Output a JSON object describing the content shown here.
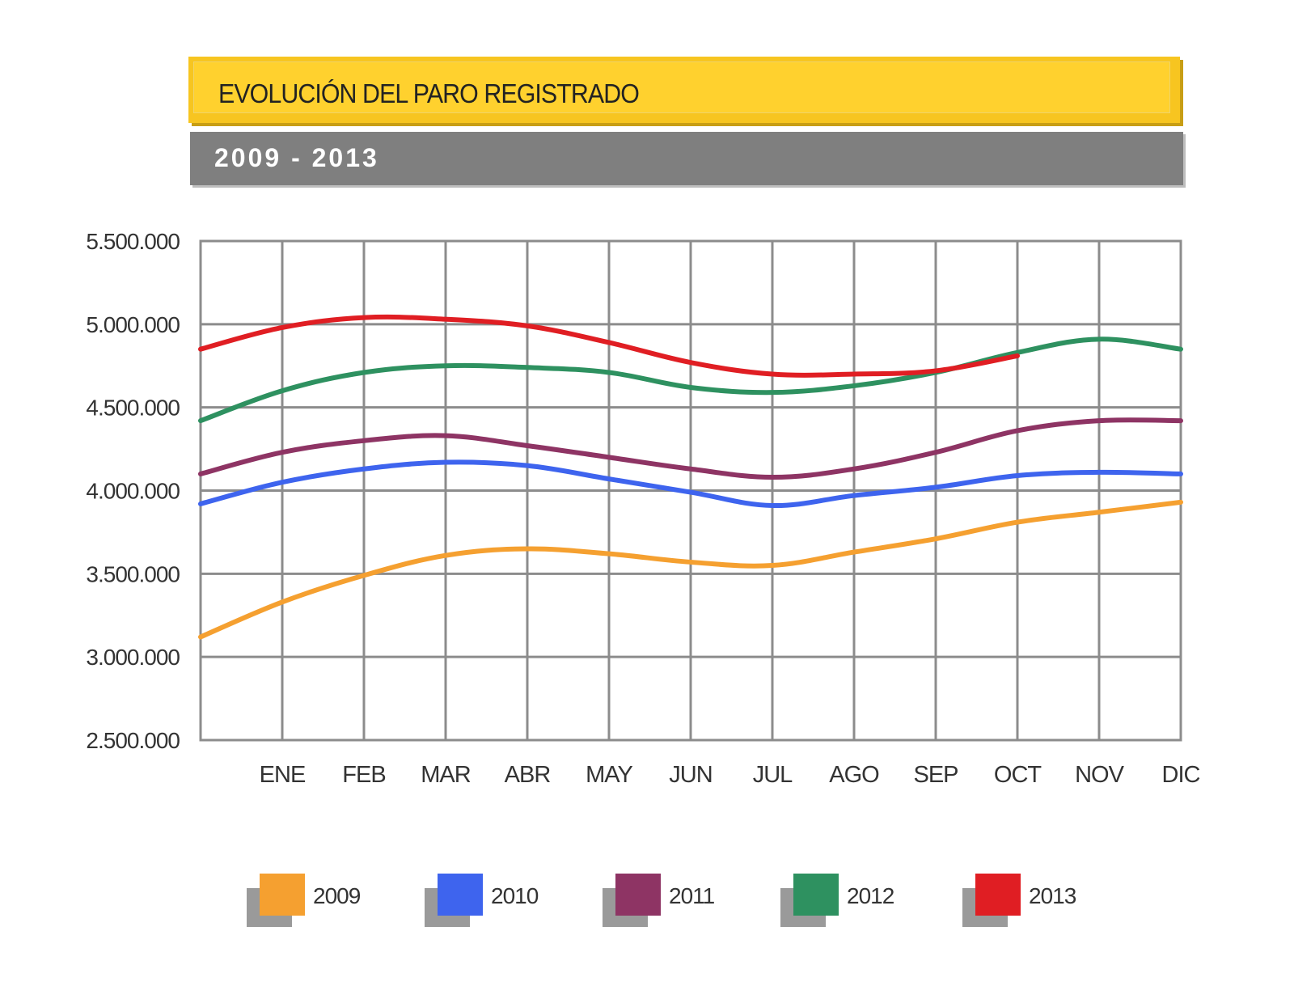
{
  "header": {
    "title": "EVOLUCIÓN DEL PARO REGISTRADO",
    "subtitle": "2009  -  2013"
  },
  "colors": {
    "title_bar": "#ffd12e",
    "subtitle_bar": "#7f7f7f",
    "grid": "#8c8c8c"
  },
  "chart_data": {
    "type": "line",
    "title": "EVOLUCIÓN DEL PARO REGISTRADO",
    "subtitle": "2009  -  2013",
    "xlabel": "",
    "ylabel": "",
    "categories": [
      "",
      "ENE",
      "FEB",
      "MAR",
      "ABR",
      "MAY",
      "JUN",
      "JUL",
      "AGO",
      "SEP",
      "OCT",
      "NOV",
      "DIC"
    ],
    "ylim": [
      2500000,
      5500000
    ],
    "yticks": [
      2500000,
      3000000,
      3500000,
      4000000,
      4500000,
      5000000,
      5500000
    ],
    "ytick_labels": [
      "2.500.000",
      "3.000.000",
      "3.500.000",
      "4.000.000",
      "4.500.000",
      "5.000.000",
      "5.500.000"
    ],
    "grid": true,
    "legend_position": "bottom",
    "series": [
      {
        "name": "2009",
        "color": "#f5a030",
        "values": [
          3120000,
          3330000,
          3490000,
          3610000,
          3650000,
          3620000,
          3570000,
          3550000,
          3630000,
          3710000,
          3810000,
          3870000,
          3930000
        ]
      },
      {
        "name": "2010",
        "color": "#3e64ee",
        "values": [
          3920000,
          4050000,
          4130000,
          4170000,
          4150000,
          4070000,
          3990000,
          3910000,
          3970000,
          4020000,
          4090000,
          4110000,
          4100000
        ]
      },
      {
        "name": "2011",
        "color": "#8e3464",
        "values": [
          4100000,
          4230000,
          4300000,
          4330000,
          4270000,
          4200000,
          4130000,
          4080000,
          4130000,
          4230000,
          4360000,
          4420000,
          4420000
        ]
      },
      {
        "name": "2012",
        "color": "#2e9160",
        "values": [
          4420000,
          4600000,
          4710000,
          4750000,
          4740000,
          4710000,
          4620000,
          4590000,
          4630000,
          4710000,
          4830000,
          4910000,
          4850000
        ]
      },
      {
        "name": "2013",
        "color": "#e01e23",
        "values": [
          4850000,
          4980000,
          5040000,
          5030000,
          4990000,
          4890000,
          4770000,
          4700000,
          4700000,
          4720000,
          4810000,
          null,
          null
        ]
      }
    ]
  }
}
